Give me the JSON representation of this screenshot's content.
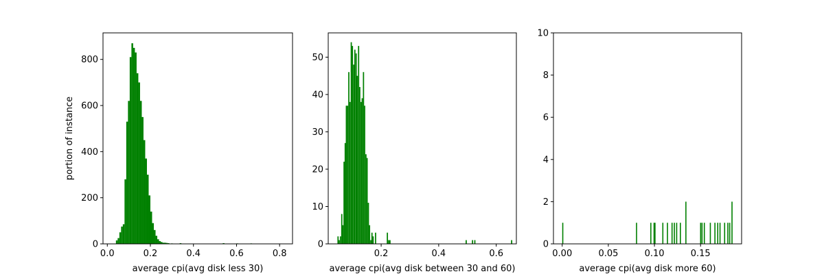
{
  "figure": {
    "bar_color": "#008000",
    "background": "#ffffff"
  },
  "chart_data": [
    {
      "type": "bar",
      "title": "",
      "xlabel": "average cpi(avg disk less 30)",
      "ylabel": "portion of instance",
      "xlim": [
        -0.02,
        0.86
      ],
      "ylim": [
        0,
        915
      ],
      "xticks": [
        0.0,
        0.2,
        0.4,
        0.6,
        0.8
      ],
      "xtick_labels": [
        "0.0",
        "0.2",
        "0.4",
        "0.6",
        "0.8"
      ],
      "yticks": [
        0,
        200,
        400,
        600,
        800
      ],
      "ytick_labels": [
        "0",
        "200",
        "400",
        "600",
        "800"
      ],
      "bin_width": 0.008,
      "bins": [
        [
          0.04,
          15
        ],
        [
          0.048,
          25
        ],
        [
          0.056,
          50
        ],
        [
          0.064,
          75
        ],
        [
          0.072,
          85
        ],
        [
          0.08,
          280
        ],
        [
          0.088,
          530
        ],
        [
          0.096,
          620
        ],
        [
          0.104,
          810
        ],
        [
          0.112,
          870
        ],
        [
          0.12,
          850
        ],
        [
          0.128,
          830
        ],
        [
          0.136,
          740
        ],
        [
          0.144,
          700
        ],
        [
          0.152,
          620
        ],
        [
          0.16,
          550
        ],
        [
          0.168,
          450
        ],
        [
          0.176,
          370
        ],
        [
          0.184,
          300
        ],
        [
          0.192,
          210
        ],
        [
          0.2,
          140
        ],
        [
          0.208,
          90
        ],
        [
          0.216,
          60
        ],
        [
          0.224,
          35
        ],
        [
          0.232,
          20
        ],
        [
          0.24,
          12
        ],
        [
          0.248,
          8
        ],
        [
          0.256,
          5
        ],
        [
          0.264,
          5
        ],
        [
          0.272,
          4
        ],
        [
          0.28,
          3
        ],
        [
          0.296,
          2
        ],
        [
          0.336,
          3
        ],
        [
          0.536,
          3
        ],
        [
          0.6,
          2
        ],
        [
          0.664,
          2
        ]
      ]
    },
    {
      "type": "bar",
      "title": "",
      "xlabel": "average cpi(avg disk between 30 and 60)",
      "ylabel": "",
      "xlim": [
        0.016,
        0.67
      ],
      "ylim": [
        0,
        56.5
      ],
      "xticks": [
        0.2,
        0.4,
        0.6
      ],
      "xtick_labels": [
        "0.2",
        "0.4",
        "0.6"
      ],
      "yticks": [
        0,
        10,
        20,
        30,
        40,
        50
      ],
      "ytick_labels": [
        "0",
        "10",
        "20",
        "30",
        "40",
        "50"
      ],
      "bin_width": 0.0042,
      "bins": [
        [
          0.048,
          2
        ],
        [
          0.052,
          1
        ],
        [
          0.0565,
          2
        ],
        [
          0.061,
          8
        ],
        [
          0.065,
          5
        ],
        [
          0.069,
          22
        ],
        [
          0.073,
          27
        ],
        [
          0.077,
          37
        ],
        [
          0.081,
          37
        ],
        [
          0.0855,
          46
        ],
        [
          0.0895,
          38
        ],
        [
          0.094,
          54
        ],
        [
          0.098,
          53
        ],
        [
          0.1025,
          48
        ],
        [
          0.1065,
          52
        ],
        [
          0.111,
          51
        ],
        [
          0.115,
          45
        ],
        [
          0.1195,
          53
        ],
        [
          0.1235,
          42
        ],
        [
          0.128,
          38
        ],
        [
          0.132,
          39
        ],
        [
          0.1365,
          46
        ],
        [
          0.1405,
          37
        ],
        [
          0.145,
          24
        ],
        [
          0.149,
          23
        ],
        [
          0.1535,
          11
        ],
        [
          0.1575,
          5
        ],
        [
          0.162,
          1
        ],
        [
          0.166,
          3
        ],
        [
          0.17,
          2
        ],
        [
          0.1785,
          3
        ],
        [
          0.2195,
          3
        ],
        [
          0.224,
          1
        ],
        [
          0.2285,
          1
        ],
        [
          0.4935,
          1
        ],
        [
          0.5155,
          1
        ],
        [
          0.5235,
          1
        ],
        [
          0.6515,
          1
        ]
      ]
    },
    {
      "type": "bar",
      "title": "",
      "xlabel": "average cpi(avg disk more 60)",
      "ylabel": "",
      "xlim": [
        -0.0095,
        0.1945
      ],
      "ylim": [
        0,
        10
      ],
      "xticks": [
        0.0,
        0.05,
        0.1,
        0.15
      ],
      "xtick_labels": [
        "0.00",
        "0.05",
        "0.10",
        "0.15"
      ],
      "yticks": [
        0,
        2,
        4,
        6,
        8,
        10
      ],
      "ytick_labels": [
        "0",
        "2",
        "4",
        "6",
        "8",
        "10"
      ],
      "bin_width": 0.0012,
      "bins": [
        [
          0.0,
          1
        ],
        [
          0.08,
          1
        ],
        [
          0.0955,
          1
        ],
        [
          0.099,
          1
        ],
        [
          0.1,
          1
        ],
        [
          0.1085,
          1
        ],
        [
          0.1135,
          1
        ],
        [
          0.1185,
          1
        ],
        [
          0.121,
          1
        ],
        [
          0.1235,
          1
        ],
        [
          0.1275,
          1
        ],
        [
          0.1335,
          2
        ],
        [
          0.1495,
          1
        ],
        [
          0.151,
          1
        ],
        [
          0.1535,
          1
        ],
        [
          0.16,
          1
        ],
        [
          0.165,
          1
        ],
        [
          0.168,
          1
        ],
        [
          0.1705,
          1
        ],
        [
          0.1755,
          1
        ],
        [
          0.179,
          1
        ],
        [
          0.181,
          1
        ],
        [
          0.1835,
          2
        ]
      ]
    }
  ]
}
